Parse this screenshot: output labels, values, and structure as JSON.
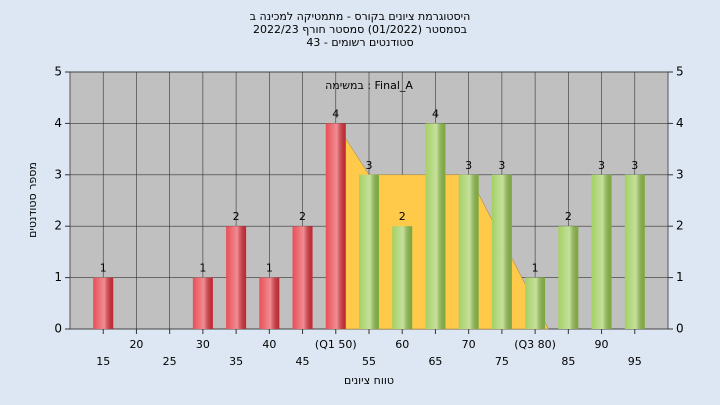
{
  "chart_data": {
    "type": "bar",
    "title": "היסטוגרמת ציונים בקורס - מתמטיקה למכינה ב",
    "subtitle": "בסמסטר  (01/2022)  סמסטר חורף 2022/23",
    "subtitle2": "סטודנטים רשומים - 43",
    "annotation": "במשימה : Final_A",
    "xlabel": "טווח ציונים",
    "ylabel": "מספר סטודנטים",
    "x": [
      15,
      20,
      25,
      30,
      35,
      40,
      45,
      50,
      55,
      60,
      65,
      70,
      75,
      80,
      85,
      90,
      95
    ],
    "values": [
      1,
      0,
      0,
      1,
      2,
      1,
      2,
      4,
      3,
      2,
      4,
      3,
      3,
      1,
      2,
      3,
      3
    ],
    "bar_colors": [
      "#e4303a",
      "#e4303a",
      "#e4303a",
      "#e4303a",
      "#e4303a",
      "#e4303a",
      "#e4303a",
      "#e4303a",
      "#95c84a",
      "#95c84a",
      "#95c84a",
      "#95c84a",
      "#95c84a",
      "#95c84a",
      "#95c84a",
      "#95c84a",
      "#95c84a"
    ],
    "quartile_area": {
      "x": [
        50,
        55,
        70,
        82
      ],
      "values": [
        4,
        3,
        3,
        0
      ],
      "color": "#ffc94a"
    },
    "xlim": [
      10,
      100
    ],
    "xticks": [
      15,
      20,
      25,
      30,
      35,
      40,
      45,
      {
        "value": 50,
        "label": "(Q1 50)"
      },
      55,
      60,
      65,
      70,
      75,
      {
        "value": 80,
        "label": "(Q3 80)"
      },
      85,
      90,
      95
    ],
    "ylim": [
      0,
      5
    ],
    "yticks": [
      0,
      1,
      2,
      3,
      4,
      5
    ],
    "grid": true
  }
}
